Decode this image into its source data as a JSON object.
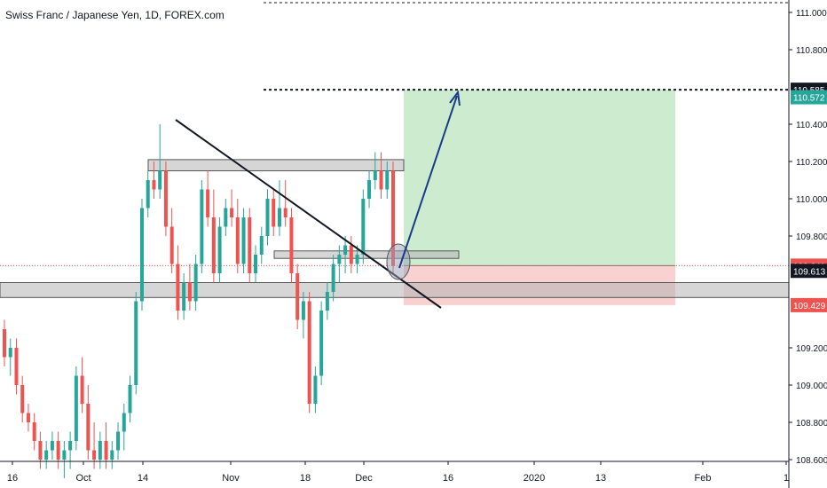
{
  "chart_data": {
    "type": "candlestick",
    "title": "Swiss Franc / Japanese Yen, 1D, FOREX.com",
    "ylim": [
      108.6,
      111.05
    ],
    "x_tick_labels": [
      "16",
      "Oct",
      "14",
      "Nov",
      "18",
      "Dec",
      "16",
      "2020",
      "13",
      "Feb",
      "1"
    ],
    "y_tick_labels": [
      "111.000",
      "110.800",
      "110.400",
      "110.200",
      "110.000",
      "109.800",
      "109.200",
      "109.000",
      "108.800",
      "108.600"
    ],
    "y_tick_values": [
      111.0,
      110.8,
      110.4,
      110.2,
      110.0,
      109.8,
      109.2,
      109.0,
      108.8,
      108.6
    ],
    "price_badges": [
      {
        "label": "110.585",
        "value": 110.585,
        "bg": "#131722"
      },
      {
        "label": "110.572",
        "value": 110.545,
        "bg": "#26a69a"
      },
      {
        "label": "109.641",
        "value": 109.641,
        "bg": "#ef5350"
      },
      {
        "label": "109.613",
        "value": 109.613,
        "bg": "#131722"
      },
      {
        "label": "109.429",
        "value": 109.429,
        "bg": "#ef5350"
      }
    ],
    "candles_ohlc": [
      [
        109.3,
        109.35,
        109.1,
        109.15
      ],
      [
        109.15,
        109.25,
        109.05,
        109.2
      ],
      [
        109.2,
        109.25,
        108.95,
        109.0
      ],
      [
        109.0,
        109.05,
        108.8,
        108.85
      ],
      [
        108.85,
        108.9,
        108.75,
        108.8
      ],
      [
        108.8,
        108.85,
        108.65,
        108.7
      ],
      [
        108.7,
        108.75,
        108.55,
        108.6
      ],
      [
        108.6,
        108.7,
        108.55,
        108.65
      ],
      [
        108.65,
        108.75,
        108.6,
        108.7
      ],
      [
        108.7,
        108.75,
        108.55,
        108.6
      ],
      [
        108.6,
        108.7,
        108.5,
        108.65
      ],
      [
        108.65,
        108.75,
        108.55,
        108.7
      ],
      [
        108.7,
        109.1,
        108.65,
        109.05
      ],
      [
        109.05,
        109.15,
        108.85,
        108.9
      ],
      [
        108.9,
        109.0,
        108.6,
        108.65
      ],
      [
        108.65,
        108.8,
        108.55,
        108.6
      ],
      [
        108.6,
        108.75,
        108.55,
        108.7
      ],
      [
        108.7,
        108.8,
        108.55,
        108.6
      ],
      [
        108.6,
        108.7,
        108.55,
        108.65
      ],
      [
        108.65,
        108.8,
        108.6,
        108.75
      ],
      [
        108.75,
        108.9,
        108.65,
        108.85
      ],
      [
        108.85,
        109.05,
        108.8,
        109.0
      ],
      [
        109.0,
        109.5,
        108.95,
        109.45
      ],
      [
        109.45,
        110.0,
        109.4,
        109.95
      ],
      [
        109.95,
        110.15,
        109.9,
        110.1
      ],
      [
        110.1,
        110.2,
        110.0,
        110.05
      ],
      [
        110.05,
        110.4,
        110.0,
        110.15
      ],
      [
        110.15,
        110.2,
        109.8,
        109.85
      ],
      [
        109.85,
        109.95,
        109.6,
        109.65
      ],
      [
        109.65,
        109.75,
        109.35,
        109.4
      ],
      [
        109.4,
        109.6,
        109.35,
        109.55
      ],
      [
        109.55,
        109.65,
        109.4,
        109.45
      ],
      [
        109.45,
        109.7,
        109.4,
        109.65
      ],
      [
        109.65,
        110.1,
        109.6,
        110.05
      ],
      [
        110.05,
        110.15,
        109.85,
        109.9
      ],
      [
        109.9,
        110.05,
        109.55,
        109.6
      ],
      [
        109.6,
        109.9,
        109.55,
        109.85
      ],
      [
        109.85,
        110.0,
        109.8,
        109.95
      ],
      [
        109.95,
        110.05,
        109.85,
        109.9
      ],
      [
        109.9,
        110.0,
        109.6,
        109.65
      ],
      [
        109.65,
        109.95,
        109.6,
        109.9
      ],
      [
        109.9,
        109.95,
        109.55,
        109.6
      ],
      [
        109.6,
        109.75,
        109.55,
        109.7
      ],
      [
        109.7,
        109.85,
        109.65,
        109.8
      ],
      [
        109.8,
        110.05,
        109.75,
        110.0
      ],
      [
        110.0,
        110.05,
        109.8,
        109.85
      ],
      [
        109.85,
        110.1,
        109.8,
        109.95
      ],
      [
        109.95,
        110.1,
        109.85,
        109.9
      ],
      [
        109.9,
        109.95,
        109.55,
        109.6
      ],
      [
        109.6,
        109.65,
        109.3,
        109.35
      ],
      [
        109.35,
        109.5,
        109.25,
        109.45
      ],
      [
        109.45,
        109.5,
        108.85,
        108.9
      ],
      [
        108.9,
        109.1,
        108.85,
        109.05
      ],
      [
        109.05,
        109.45,
        109.0,
        109.4
      ],
      [
        109.4,
        109.55,
        109.35,
        109.5
      ],
      [
        109.5,
        109.7,
        109.45,
        109.65
      ],
      [
        109.65,
        109.75,
        109.55,
        109.7
      ],
      [
        109.7,
        109.8,
        109.6,
        109.75
      ],
      [
        109.75,
        109.8,
        109.6,
        109.65
      ],
      [
        109.65,
        109.75,
        109.6,
        109.7
      ],
      [
        109.7,
        110.05,
        109.65,
        110.0
      ],
      [
        110.0,
        110.15,
        109.95,
        110.1
      ],
      [
        110.1,
        110.25,
        110.05,
        110.15
      ],
      [
        110.15,
        110.25,
        110.0,
        110.05
      ],
      [
        110.05,
        110.2,
        110.0,
        110.15
      ],
      [
        110.15,
        110.2,
        109.6,
        109.64
      ]
    ],
    "zones": [
      {
        "name": "resistance",
        "y_top": 110.21,
        "y_bottom": 110.15
      },
      {
        "name": "mid",
        "y_top": 109.72,
        "y_bottom": 109.68
      },
      {
        "name": "support",
        "y_top": 109.55,
        "y_bottom": 109.47
      }
    ],
    "trade": {
      "entry": 109.641,
      "target": 110.585,
      "stop": 109.429
    },
    "grid": false
  }
}
